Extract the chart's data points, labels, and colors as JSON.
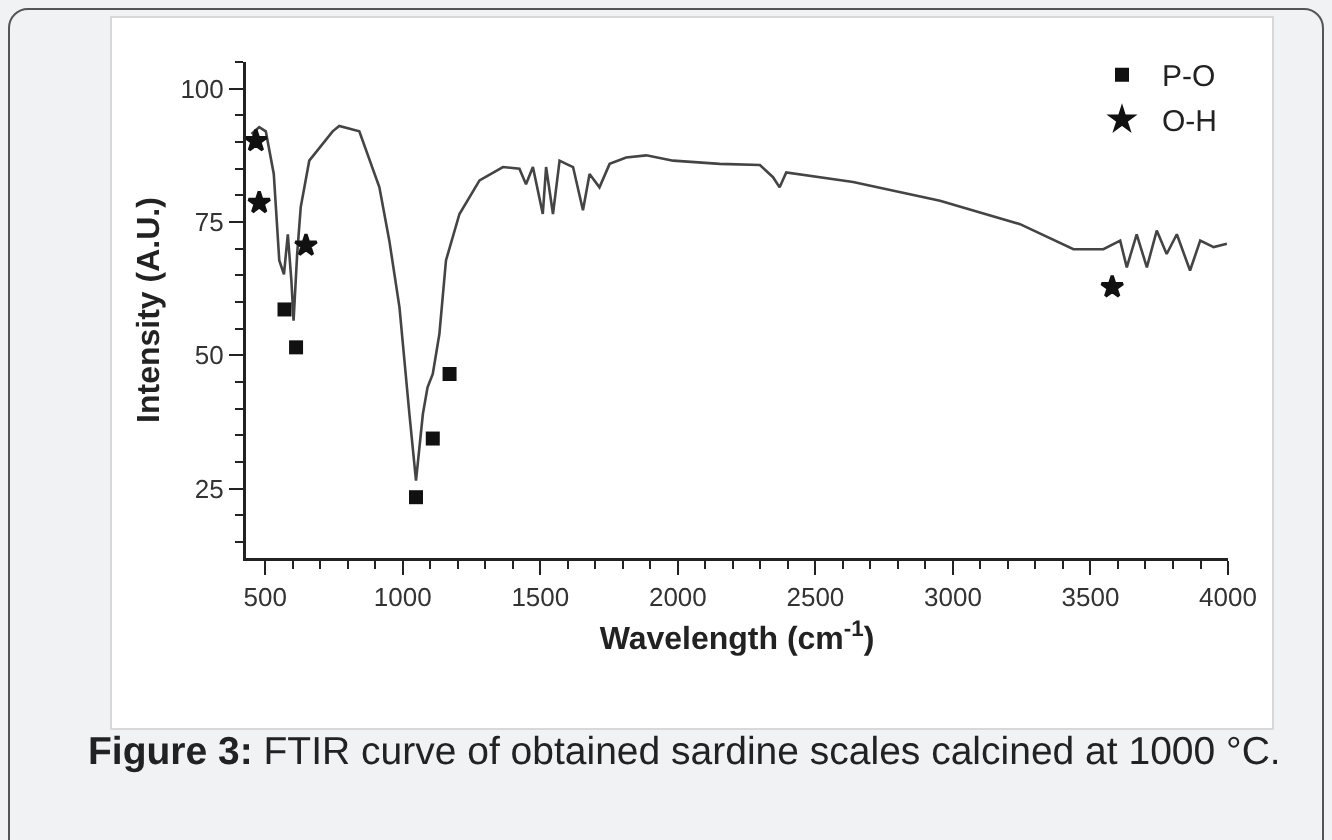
{
  "chart_data": {
    "type": "line",
    "xlabel": "Wavelength (cm$^{-1}$)",
    "ylabel": "Intensity (A.U.)",
    "xlim": [
      430,
      4000
    ],
    "xticks": [
      500,
      1000,
      1500,
      2000,
      2500,
      3000,
      3500,
      4000
    ],
    "ylim": [
      12,
      105
    ],
    "yticks": [
      25,
      50,
      75,
      100
    ],
    "grid": false,
    "legend": "top right",
    "series": [
      {
        "color": "#444444",
        "marker": "none",
        "line_style": "solid",
        "x": [
          450,
          478,
          502,
          531,
          551,
          568,
          582,
          595,
          603,
          616,
          629,
          660,
          745,
          769,
          842,
          915,
          951,
          988,
          1024,
          1048,
          1073,
          1090,
          1109,
          1133,
          1157,
          1206,
          1279,
          1364,
          1424,
          1448,
          1473,
          1509,
          1521,
          1546,
          1570,
          1594,
          1619,
          1655,
          1679,
          1715,
          1752,
          1812,
          1885,
          1983,
          2152,
          2298,
          2346,
          2370,
          2394,
          2637,
          2953,
          3244,
          3438,
          3547,
          3608,
          3632,
          3668,
          3705,
          3741,
          3777,
          3814,
          3862,
          3899,
          3948,
          3996
        ],
        "values": [
          91.5,
          92.8,
          92,
          84,
          67.8,
          65.2,
          72.7,
          64,
          56.5,
          69,
          77.8,
          86.5,
          92,
          93,
          92,
          81.5,
          71.5,
          59,
          39,
          26.5,
          39,
          44,
          46.5,
          54,
          67.8,
          76.5,
          82.8,
          85.3,
          85,
          82.1,
          85.3,
          76.5,
          85.3,
          76.5,
          86.5,
          85.9,
          85.3,
          77.2,
          84,
          81.5,
          85.9,
          87.1,
          87.5,
          86.5,
          85.9,
          85.7,
          83.4,
          81.5,
          84.3,
          82.5,
          79,
          74.6,
          69.9,
          69.9,
          71.5,
          66.5,
          72.7,
          66.5,
          73.4,
          69,
          72.7,
          65.9,
          71.5,
          70.3,
          70.9
        ]
      },
      {
        "type": "scatter",
        "name": "P-O",
        "color": "#111111",
        "marker": "square",
        "x": [
          570,
          612,
          1048,
          1109,
          1170
        ],
        "values": [
          58.6,
          51.5,
          23.4,
          34.4,
          46.5
        ]
      },
      {
        "type": "scatter",
        "name": "O-H",
        "color": "#111111",
        "marker": "star",
        "x": [
          466,
          478,
          648,
          3579
        ],
        "values": [
          90.2,
          78.6,
          70.6,
          62.8
        ]
      }
    ],
    "annotations": [
      "Figure 3: FTIR curve of obtained sardine scales calcined at 1000 °C."
    ]
  }
}
